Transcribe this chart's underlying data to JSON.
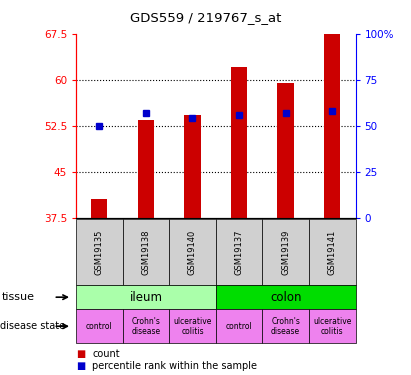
{
  "title": "GDS559 / 219767_s_at",
  "samples": [
    "GSM19135",
    "GSM19138",
    "GSM19140",
    "GSM19137",
    "GSM19139",
    "GSM19141"
  ],
  "count_values": [
    40.5,
    53.5,
    54.2,
    62.0,
    59.5,
    67.5
  ],
  "percentile_values": [
    50,
    57,
    54,
    56,
    57,
    58
  ],
  "bar_bottom": 37.5,
  "ylim": [
    37.5,
    67.5
  ],
  "y_left_ticks": [
    37.5,
    45.0,
    52.5,
    60.0,
    67.5
  ],
  "y_right_ticks": [
    0,
    25,
    50,
    75,
    100
  ],
  "tissue_groups": [
    {
      "label": "ileum",
      "span": [
        0,
        3
      ],
      "color": "#aaffaa"
    },
    {
      "label": "colon",
      "span": [
        3,
        6
      ],
      "color": "#00dd00"
    }
  ],
  "disease_groups": [
    {
      "label": "control",
      "span": [
        0,
        1
      ],
      "color": "#ee82ee"
    },
    {
      "label": "Crohn's\ndisease",
      "span": [
        1,
        2
      ],
      "color": "#ee82ee"
    },
    {
      "label": "ulcerative\ncolitis",
      "span": [
        2,
        3
      ],
      "color": "#ee82ee"
    },
    {
      "label": "control",
      "span": [
        3,
        4
      ],
      "color": "#ee82ee"
    },
    {
      "label": "Crohn's\ndisease",
      "span": [
        4,
        5
      ],
      "color": "#ee82ee"
    },
    {
      "label": "ulcerative\ncolitis",
      "span": [
        5,
        6
      ],
      "color": "#ee82ee"
    }
  ],
  "bar_color": "#cc0000",
  "percentile_color": "#0000cc",
  "sample_bg_color": "#d0d0d0",
  "bar_width": 0.35,
  "legend_count_label": "count",
  "legend_percentile_label": "percentile rank within the sample",
  "tissue_label": "tissue",
  "disease_label": "disease state",
  "dotted_yticks": [
    45.0,
    52.5,
    60.0
  ]
}
